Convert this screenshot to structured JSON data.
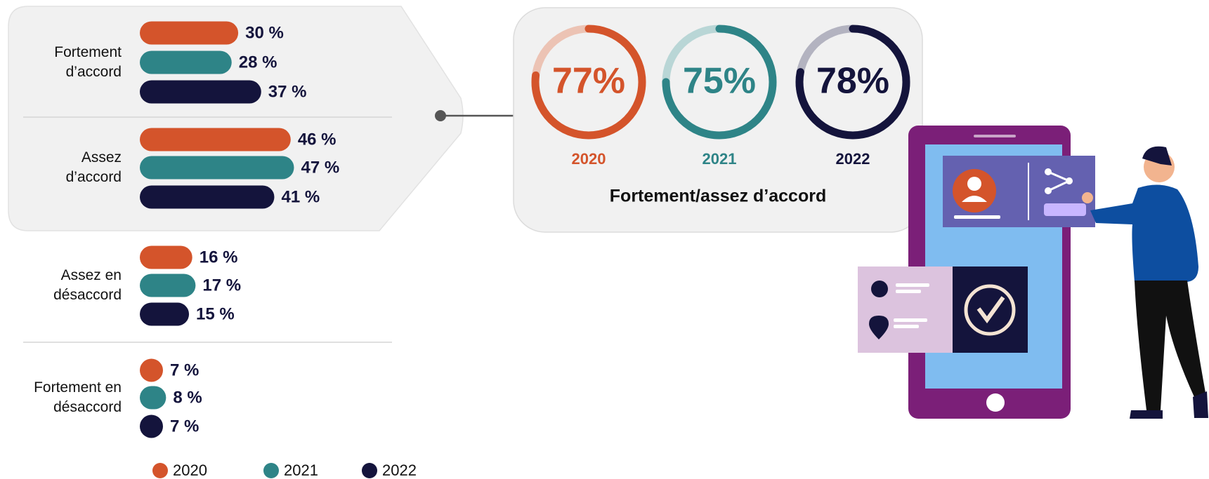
{
  "chart_data": [
    {
      "type": "bar",
      "orientation": "horizontal",
      "categories": [
        "Fortement d’accord",
        "Assez d’accord",
        "Assez en désaccord",
        "Fortement en désaccord"
      ],
      "series": [
        {
          "name": "2020",
          "color": "#d4542b",
          "values": [
            30,
            46,
            16,
            7
          ],
          "value_labels": [
            "30 %",
            "46 %",
            "16 %",
            "7 %"
          ]
        },
        {
          "name": "2021",
          "color": "#2e8487",
          "values": [
            28,
            47,
            17,
            8
          ],
          "value_labels": [
            "28 %",
            "47 %",
            "17 %",
            "8 %"
          ]
        },
        {
          "name": "2022",
          "color": "#14143c",
          "values": [
            37,
            41,
            15,
            7
          ],
          "value_labels": [
            "37 %",
            "41 %",
            "15 %",
            "7 %"
          ]
        }
      ],
      "legend": "bottom"
    },
    {
      "type": "donut",
      "title": "Fortement/assez d’accord",
      "categories": [
        "2020",
        "2021",
        "2022"
      ],
      "values": [
        77,
        75,
        78
      ],
      "value_labels": [
        "77%",
        "75%",
        "78%"
      ],
      "colors": [
        "#d4542b",
        "#2e8487",
        "#14143c"
      ],
      "track_colors": [
        "#ecc3b4",
        "#b9d6d6",
        "#b3b3c0"
      ]
    }
  ]
}
